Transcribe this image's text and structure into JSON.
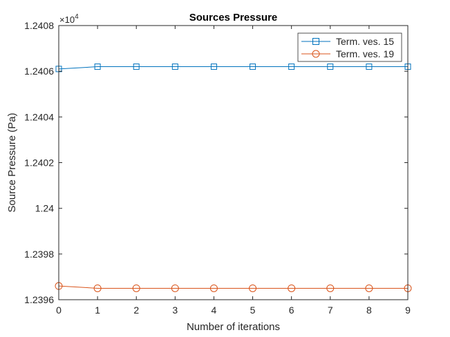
{
  "chart_data": {
    "type": "line",
    "title": "Sources Pressure",
    "xlabel": "Number of iterations",
    "ylabel": "Source Pressure (Pa)",
    "y_exponent_label": "×10",
    "y_exponent_power": "4",
    "xlim": [
      0,
      9
    ],
    "ylim": [
      12396,
      12408
    ],
    "xticks": [
      0,
      1,
      2,
      3,
      4,
      5,
      6,
      7,
      8,
      9
    ],
    "xtick_labels": [
      "0",
      "1",
      "2",
      "3",
      "4",
      "5",
      "6",
      "7",
      "8",
      "9"
    ],
    "yticks": [
      12396,
      12398,
      12400,
      12402,
      12404,
      12406,
      12408
    ],
    "ytick_labels": [
      "1.2396",
      "1.2398",
      "1.24",
      "1.2402",
      "1.2404",
      "1.2406",
      "1.2408"
    ],
    "grid": false,
    "legend_position": "top-right",
    "x": [
      0,
      1,
      2,
      3,
      4,
      5,
      6,
      7,
      8,
      9
    ],
    "series": [
      {
        "name": "Term. ves. 15",
        "color": "#0072BD",
        "marker": "square",
        "values": [
          12406.1,
          12406.2,
          12406.2,
          12406.2,
          12406.2,
          12406.2,
          12406.2,
          12406.2,
          12406.2,
          12406.2
        ]
      },
      {
        "name": "Term. ves. 19",
        "color": "#D95319",
        "marker": "circle",
        "values": [
          12396.6,
          12396.5,
          12396.5,
          12396.5,
          12396.5,
          12396.5,
          12396.5,
          12396.5,
          12396.5,
          12396.5
        ]
      }
    ]
  }
}
